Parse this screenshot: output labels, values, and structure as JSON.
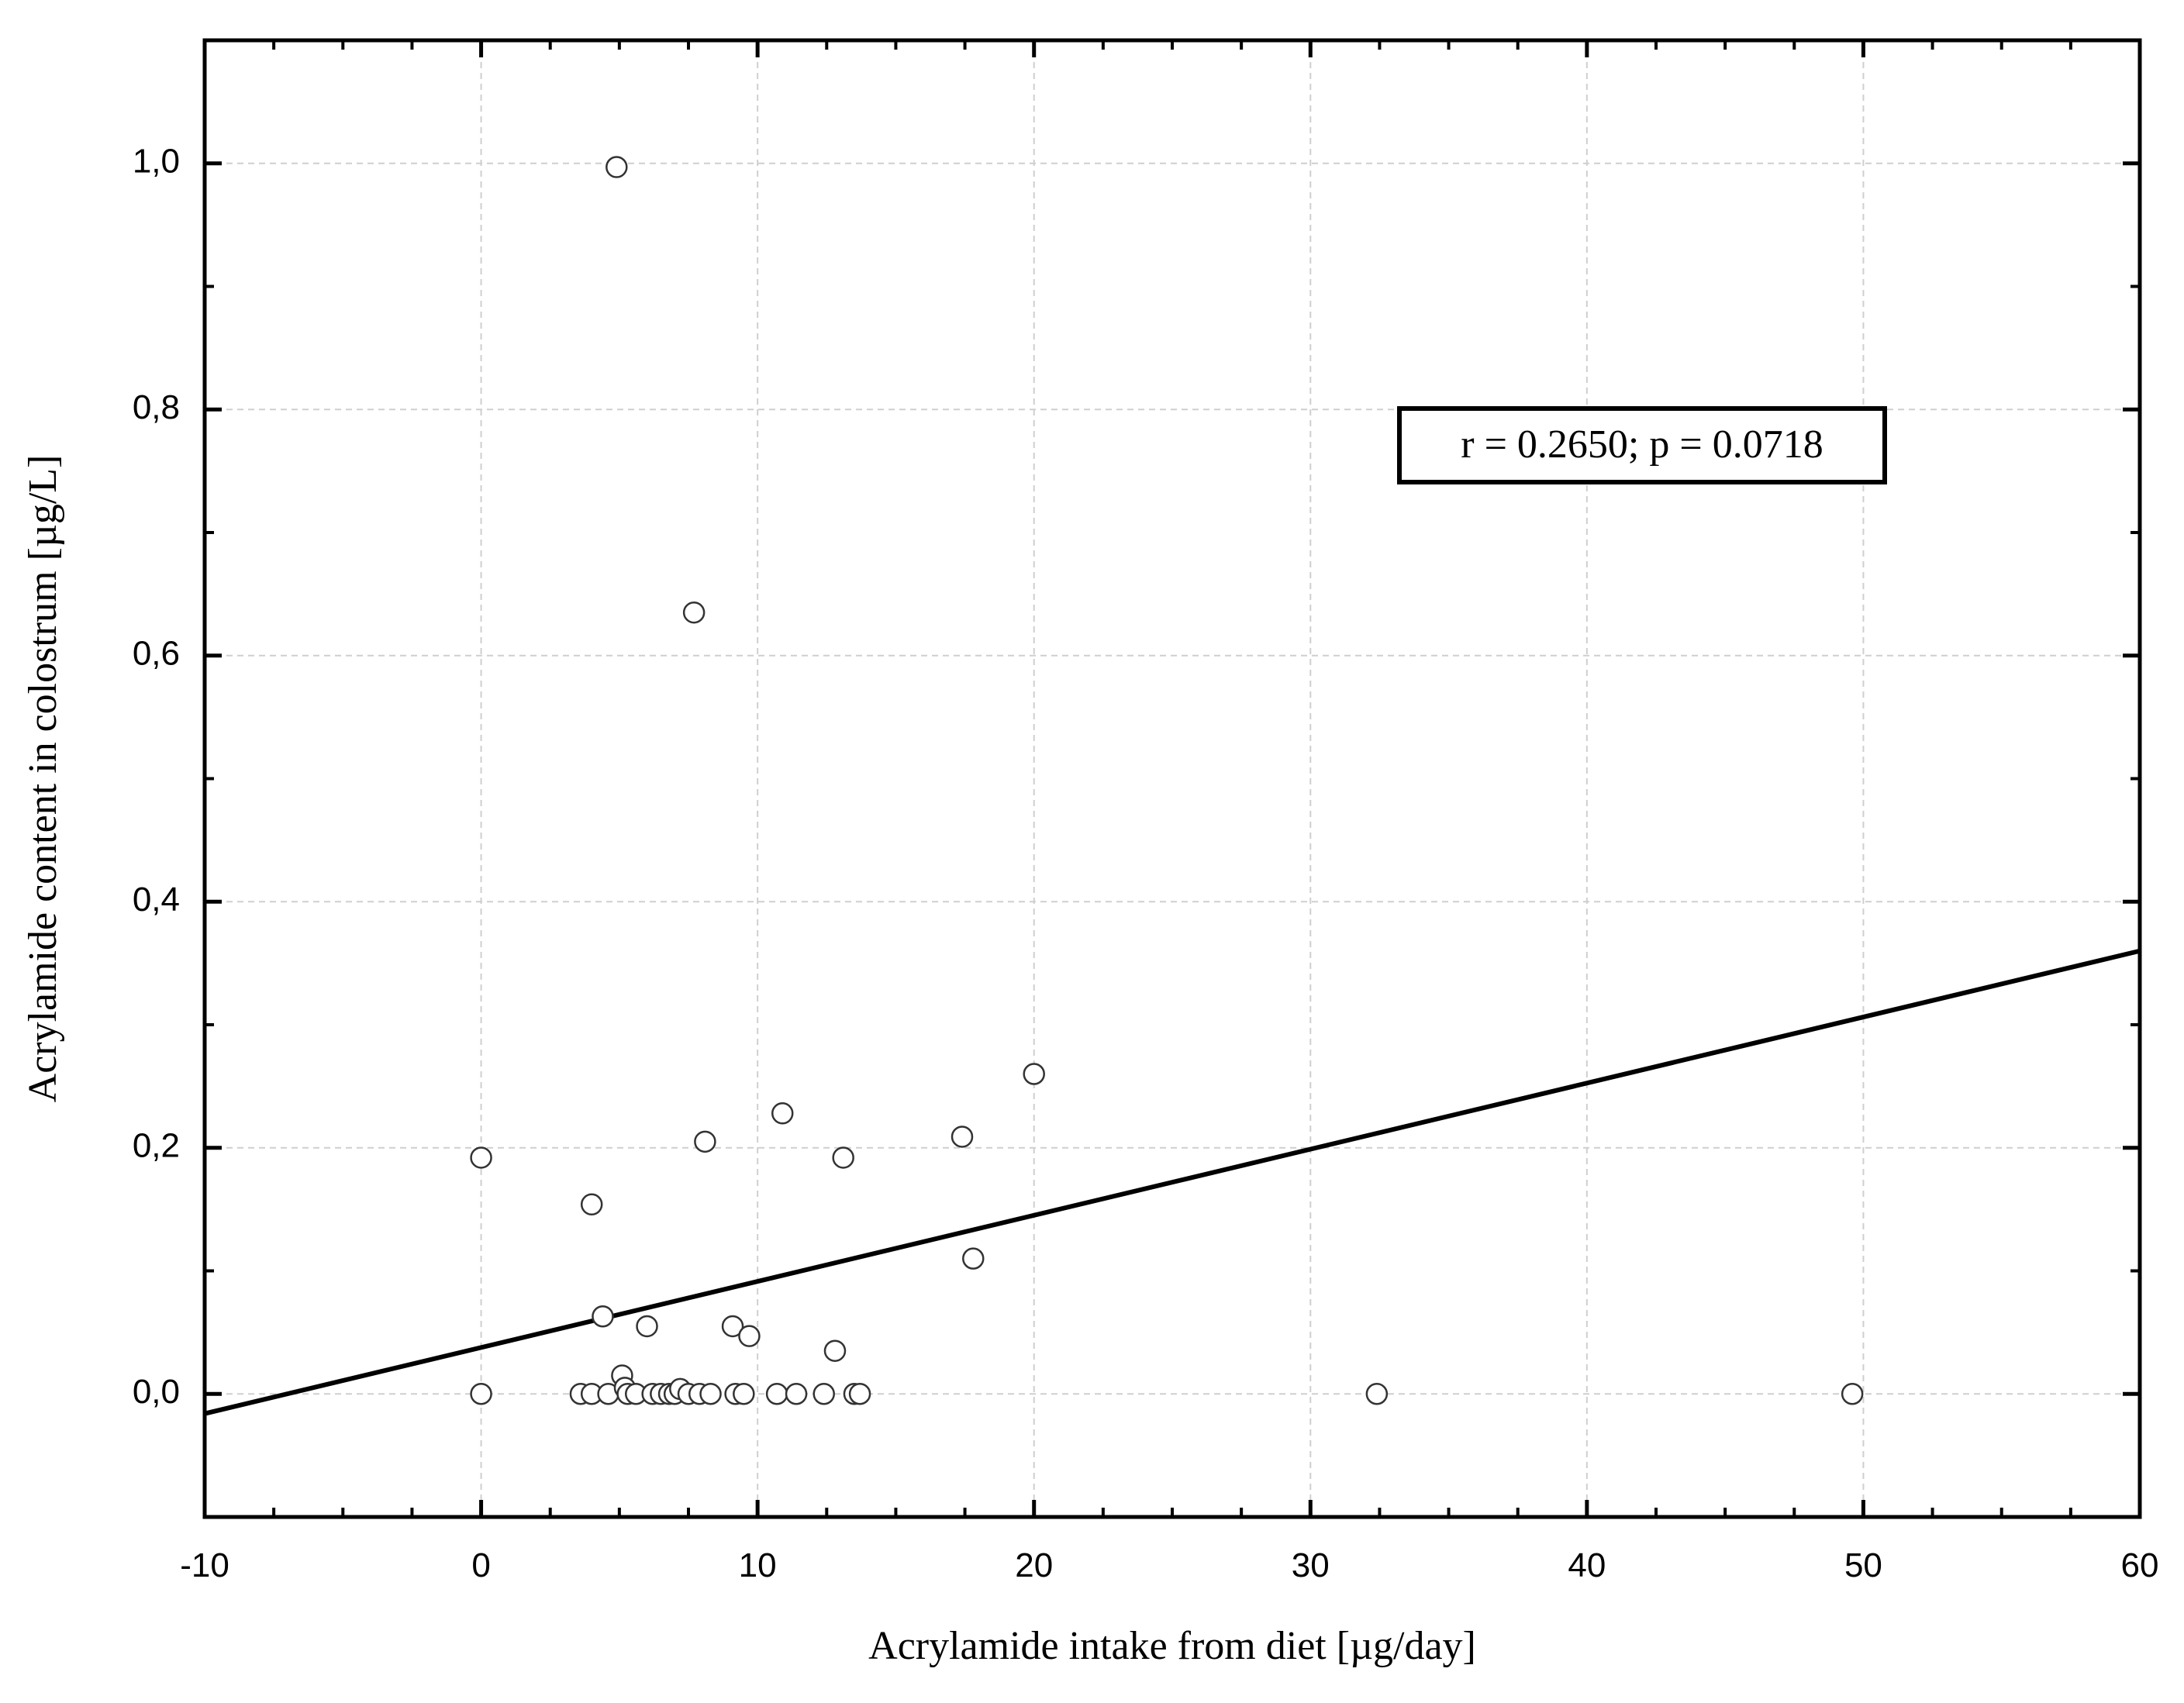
{
  "chart_data": {
    "type": "scatter",
    "title": "",
    "xlabel": "Acrylamide intake from diet [µg/day]",
    "ylabel": "Acrylamide content in colostrum [µg/L]",
    "xlim": [
      -10,
      60
    ],
    "ylim": [
      -0.1,
      1.1
    ],
    "x_ticks": [
      -10,
      0,
      10,
      20,
      30,
      40,
      50,
      60
    ],
    "x_tick_labels": [
      "-10",
      "0",
      "10",
      "20",
      "30",
      "40",
      "50",
      "60"
    ],
    "y_ticks": [
      0.0,
      0.2,
      0.4,
      0.6,
      0.8,
      1.0
    ],
    "y_tick_labels": [
      "0,0",
      "0,2",
      "0,4",
      "0,6",
      "0,8",
      "1,0"
    ],
    "grid": true,
    "annotation": "r = 0.2650; p = 0.0718",
    "regression_line": {
      "x": [
        -10,
        60
      ],
      "y": [
        -0.016,
        0.36
      ]
    },
    "points": [
      {
        "x": 0.0,
        "y": 0.192
      },
      {
        "x": 0.0,
        "y": 0.0
      },
      {
        "x": 3.6,
        "y": 0.0
      },
      {
        "x": 4.0,
        "y": 0.0
      },
      {
        "x": 4.0,
        "y": 0.154
      },
      {
        "x": 4.4,
        "y": 0.063
      },
      {
        "x": 4.6,
        "y": 0.0
      },
      {
        "x": 4.9,
        "y": 0.997
      },
      {
        "x": 5.1,
        "y": 0.015
      },
      {
        "x": 5.2,
        "y": 0.005
      },
      {
        "x": 5.3,
        "y": 0.0
      },
      {
        "x": 5.6,
        "y": 0.0
      },
      {
        "x": 6.0,
        "y": 0.055
      },
      {
        "x": 6.2,
        "y": 0.0
      },
      {
        "x": 6.5,
        "y": 0.0
      },
      {
        "x": 6.8,
        "y": 0.0
      },
      {
        "x": 7.0,
        "y": 0.0
      },
      {
        "x": 7.2,
        "y": 0.004
      },
      {
        "x": 7.5,
        "y": 0.0
      },
      {
        "x": 7.7,
        "y": 0.635
      },
      {
        "x": 7.9,
        "y": 0.0
      },
      {
        "x": 8.1,
        "y": 0.205
      },
      {
        "x": 8.3,
        "y": 0.0
      },
      {
        "x": 9.1,
        "y": 0.055
      },
      {
        "x": 9.2,
        "y": 0.0
      },
      {
        "x": 9.5,
        "y": 0.0
      },
      {
        "x": 9.7,
        "y": 0.047
      },
      {
        "x": 10.7,
        "y": 0.0
      },
      {
        "x": 10.9,
        "y": 0.228
      },
      {
        "x": 11.4,
        "y": 0.0
      },
      {
        "x": 12.4,
        "y": 0.0
      },
      {
        "x": 12.8,
        "y": 0.035
      },
      {
        "x": 13.1,
        "y": 0.192
      },
      {
        "x": 13.5,
        "y": 0.0
      },
      {
        "x": 13.7,
        "y": 0.0
      },
      {
        "x": 17.4,
        "y": 0.209
      },
      {
        "x": 17.8,
        "y": 0.11
      },
      {
        "x": 20.0,
        "y": 0.26
      },
      {
        "x": 32.4,
        "y": 0.0
      },
      {
        "x": 49.6,
        "y": 0.0
      }
    ]
  }
}
